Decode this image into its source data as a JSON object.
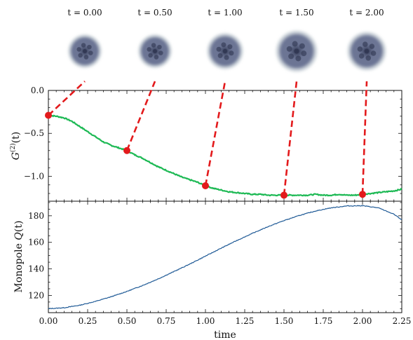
{
  "chart_data": [
    {
      "panel": "snapshots",
      "type": "image",
      "labels": [
        "t = 0.00",
        "t = 0.50",
        "t = 1.00",
        "t = 1.50",
        "t = 2.00"
      ],
      "times": [
        0.0,
        0.5,
        1.0,
        1.5,
        2.0
      ],
      "relative_size": [
        0.78,
        0.78,
        0.84,
        0.96,
        0.9
      ],
      "colors": {
        "core": "#2e3550",
        "mid": "#6c7594",
        "halo": "#b9c8cc"
      }
    },
    {
      "panel": "top",
      "type": "line",
      "ylabel_main": "G",
      "ylabel_sup": "(2)",
      "ylabel_tail": "(t)",
      "xlim": [
        0.0,
        2.25
      ],
      "ylim": [
        -1.29,
        0.0
      ],
      "yticks": [
        0.0,
        -0.5,
        -1.0
      ],
      "ytick_labels": [
        "0.0",
        "−0.5",
        "−1.0"
      ],
      "series": [
        {
          "color": "#1db954",
          "x": [
            0.0,
            0.05,
            0.1,
            0.15,
            0.2,
            0.25,
            0.3,
            0.35,
            0.4,
            0.45,
            0.5,
            0.55,
            0.6,
            0.65,
            0.7,
            0.75,
            0.8,
            0.85,
            0.9,
            0.95,
            1.0,
            1.05,
            1.1,
            1.15,
            1.2,
            1.25,
            1.3,
            1.35,
            1.4,
            1.45,
            1.5,
            1.55,
            1.6,
            1.65,
            1.7,
            1.75,
            1.8,
            1.85,
            1.9,
            1.95,
            2.0,
            2.05,
            2.1,
            2.15,
            2.2,
            2.25
          ],
          "y": [
            -0.29,
            -0.3,
            -0.32,
            -0.36,
            -0.42,
            -0.48,
            -0.54,
            -0.6,
            -0.64,
            -0.67,
            -0.7,
            -0.75,
            -0.79,
            -0.84,
            -0.89,
            -0.93,
            -0.97,
            -1.01,
            -1.04,
            -1.07,
            -1.11,
            -1.14,
            -1.16,
            -1.18,
            -1.19,
            -1.2,
            -1.21,
            -1.21,
            -1.22,
            -1.22,
            -1.22,
            -1.22,
            -1.22,
            -1.22,
            -1.21,
            -1.22,
            -1.22,
            -1.21,
            -1.22,
            -1.22,
            -1.21,
            -1.2,
            -1.19,
            -1.18,
            -1.17,
            -1.15
          ]
        }
      ],
      "markers": {
        "color": "#e31a1c",
        "x": [
          0.0,
          0.5,
          1.0,
          1.5,
          2.0
        ],
        "y": [
          -0.29,
          -0.7,
          -1.11,
          -1.22,
          -1.21
        ]
      }
    },
    {
      "panel": "bottom",
      "type": "line",
      "ylabel_prefix": "Monopole",
      "ylabel_symbol": "Q",
      "ylabel_tail": "(t)",
      "xlabel": "time",
      "xlim": [
        0.0,
        2.25
      ],
      "ylim": [
        107,
        191
      ],
      "xticks": [
        0.0,
        0.25,
        0.5,
        0.75,
        1.0,
        1.25,
        1.5,
        1.75,
        2.0,
        2.25
      ],
      "xtick_labels": [
        "0.00",
        "0.25",
        "0.50",
        "0.75",
        "1.00",
        "1.25",
        "1.50",
        "1.75",
        "2.00",
        "2.25"
      ],
      "yticks": [
        120,
        140,
        160,
        180
      ],
      "ytick_labels": [
        "120",
        "140",
        "160",
        "180"
      ],
      "series": [
        {
          "color": "#1f5a96",
          "x": [
            0.0,
            0.1,
            0.2,
            0.3,
            0.4,
            0.5,
            0.6,
            0.7,
            0.8,
            0.9,
            1.0,
            1.1,
            1.2,
            1.3,
            1.4,
            1.5,
            1.6,
            1.7,
            1.8,
            1.9,
            2.0,
            2.1,
            2.2,
            2.25
          ],
          "y": [
            110.0,
            110.7,
            112.6,
            115.5,
            119.0,
            123.0,
            127.5,
            132.5,
            138.0,
            143.6,
            149.6,
            155.6,
            161.4,
            166.8,
            171.9,
            176.4,
            180.3,
            183.6,
            186.0,
            187.4,
            187.6,
            186.0,
            181.2,
            177.0
          ]
        }
      ]
    }
  ]
}
